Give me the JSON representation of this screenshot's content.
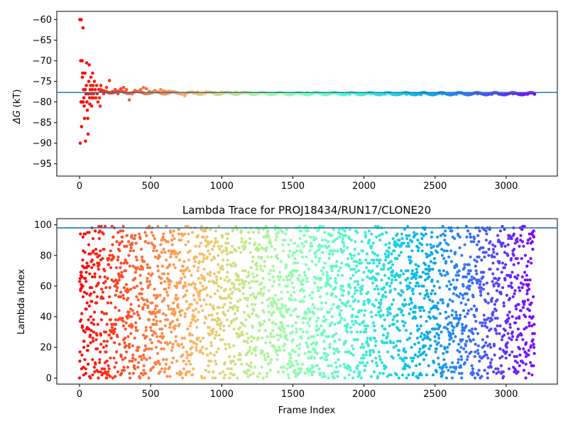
{
  "chart_data": [
    {
      "type": "scatter",
      "title": "",
      "xlabel": "",
      "ylabel": "ΔG (kT)",
      "ylabel_symbol": "ΔG",
      "ylabel_unit": "(kT)",
      "xlim": [
        -160,
        3360
      ],
      "ylim": [
        -98,
        -58
      ],
      "xticks": [
        "0",
        "500",
        "1000",
        "1500",
        "2000",
        "2500",
        "3000"
      ],
      "yticks": [
        "−60",
        "−65",
        "−70",
        "−75",
        "−80",
        "−85",
        "−90",
        "−95"
      ],
      "hline": -77.7,
      "hline_color": "#1f77b4",
      "colormap": "rainbow (red at frame 0 → violet at frame 3200)",
      "series": [
        {
          "x": [
            2,
            5,
            8,
            10,
            12,
            14,
            16,
            18,
            20,
            22,
            24,
            26,
            28,
            30,
            32,
            35,
            38,
            40,
            42,
            45,
            48,
            50,
            52,
            55,
            58,
            60,
            62,
            65,
            68,
            70,
            72,
            75,
            78,
            80,
            82,
            85,
            88,
            90,
            92,
            95,
            98,
            100,
            105,
            110,
            115,
            120,
            125,
            130,
            135,
            140,
            145,
            150
          ],
          "y": [
            -60,
            -90,
            -70,
            -80,
            -60,
            -86,
            -80,
            -70,
            -74,
            -73,
            -62,
            -80,
            -77,
            -79,
            -81,
            -84,
            -73,
            -77,
            -89.5,
            -78,
            -76,
            -70.5,
            -80,
            -82,
            -84,
            -87.8,
            -78,
            -75,
            -71,
            -79,
            -80.5,
            -77,
            -76,
            -74,
            -78,
            -81,
            -79,
            -77,
            -73,
            -76,
            -79,
            -78,
            -75,
            -77,
            -79,
            -76,
            -78,
            -80,
            -77,
            -79,
            -81,
            -77
          ]
        },
        {
          "x": [
            150,
            170,
            190,
            210,
            230,
            250,
            270,
            290,
            310,
            330,
            350,
            370,
            390,
            410,
            430,
            450,
            470,
            490,
            510,
            530,
            550,
            570,
            590,
            610,
            630,
            650,
            680,
            710,
            740,
            770,
            800,
            830,
            860,
            890,
            920,
            950,
            1000,
            1050,
            1100,
            1150,
            1200,
            1250,
            1300,
            1350,
            1400,
            1450,
            1500,
            1550,
            1600,
            1650,
            1700,
            1750,
            1800,
            1850,
            1900,
            1950,
            2000,
            2050,
            2100,
            2150,
            2200,
            2250,
            2300,
            2350,
            2400,
            2450,
            2500,
            2550,
            2600,
            2650,
            2700,
            2750,
            2800,
            2850,
            2900,
            2950,
            3000,
            3050,
            3100,
            3150,
            3200
          ],
          "y": [
            -76,
            -78,
            -76.5,
            -74.8,
            -77.5,
            -77,
            -78,
            -76.8,
            -76.5,
            -77,
            -79.5,
            -78,
            -77.2,
            -77.5,
            -77,
            -76.5,
            -76.8,
            -77.4,
            -77.8,
            -77.2,
            -77.6,
            -77,
            -77.3,
            -77.5,
            -77.4,
            -77.5,
            -77.8,
            -78,
            -78.5,
            -77.7,
            -77.8,
            -77.6,
            -77.8,
            -77.5,
            -77.6,
            -77.7,
            -77.6,
            -77.7,
            -77.6,
            -77.8,
            -77.7,
            -77.9,
            -77.8,
            -78,
            -77.7,
            -78.1,
            -77.9,
            -78,
            -77.7,
            -77.9,
            -77.9,
            -78,
            -77.7,
            -77.9,
            -78.1,
            -78.1,
            -78.1,
            -78,
            -78.2,
            -78.1,
            -78.2,
            -78.1,
            -78.1,
            -78,
            -78.2,
            -78,
            -78.1,
            -78,
            -78.1,
            -78.1,
            -78,
            -78.1,
            -78,
            -78.2,
            -78.1,
            -78.1,
            -78.1,
            -78,
            -78.1,
            -78.1,
            -78.1
          ]
        }
      ]
    },
    {
      "type": "scatter",
      "title": "Lambda Trace for PROJ18434/RUN17/CLONE20",
      "xlabel": "Frame Index",
      "ylabel": "Lambda Index",
      "xlim": [
        -160,
        3360
      ],
      "ylim": [
        -4,
        104
      ],
      "xticks": [
        "0",
        "500",
        "1000",
        "1500",
        "2000",
        "2500",
        "3000"
      ],
      "yticks": [
        "0",
        "20",
        "40",
        "60",
        "80",
        "100"
      ],
      "hline": 98,
      "hline_color": "#1f77b4",
      "colormap": "rainbow (red at frame 0 → violet at frame 3200)",
      "n_frames": 3200,
      "lambda_range": [
        0,
        99
      ],
      "distribution": "lambda values spread uniformly over 0–99 for each frame"
    }
  ]
}
